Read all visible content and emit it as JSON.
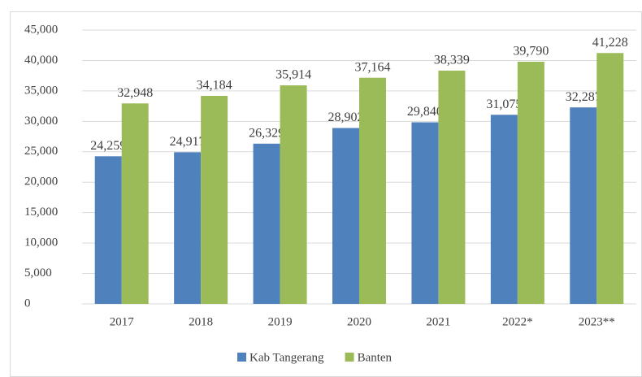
{
  "chart_data": {
    "type": "bar",
    "categories": [
      "2017",
      "2018",
      "2019",
      "2020",
      "2021",
      "2022*",
      "2023**"
    ],
    "series": [
      {
        "name": "Kab Tangerang",
        "color": "#4f81bd",
        "values": [
          24259,
          24917,
          26329,
          28902,
          29840,
          31075,
          32287
        ],
        "value_labels": [
          "24,259",
          "24,917",
          "26,329",
          "28,902",
          "29,840",
          "31,075",
          "32,287"
        ]
      },
      {
        "name": "Banten",
        "color": "#9bbb59",
        "values": [
          32948,
          34184,
          35914,
          37164,
          38339,
          39790,
          41228
        ],
        "value_labels": [
          "32,948",
          "34,184",
          "35,914",
          "37,164",
          "38,339",
          "39,790",
          "41,228"
        ]
      }
    ],
    "ylim": [
      0,
      45000
    ],
    "yticks": [
      0,
      {
        "value": 5000,
        "label": "5,000"
      },
      {
        "value": 10000,
        "label": "10,000"
      },
      {
        "value": 15000,
        "label": "15,000"
      },
      {
        "value": 20000,
        "label": "20,000"
      },
      {
        "value": 25000,
        "label": "25,000"
      },
      {
        "value": 30000,
        "label": "30,000"
      },
      {
        "value": 35000,
        "label": "35,000"
      },
      {
        "value": 40000,
        "label": "40,000"
      },
      {
        "value": 45000,
        "label": "45,000"
      }
    ],
    "grid": true,
    "legend": "bottom"
  }
}
